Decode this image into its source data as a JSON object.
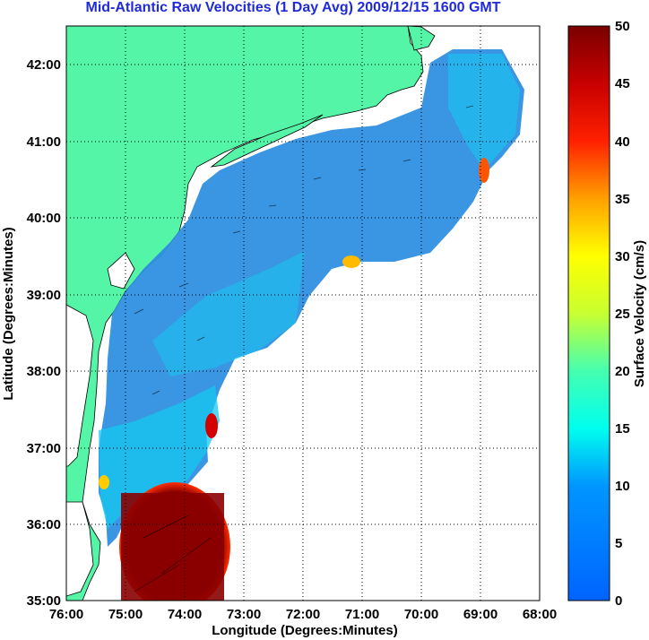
{
  "title": "Mid-Atlantic Raw Velocities (1 Day Avg) 2009/12/15 1600 GMT",
  "xlabel": "Longitude (Degrees:Minutes)",
  "ylabel": "Latitude (Degrees:Minutes)",
  "colorbar_label": "Surface Velocity (cm/s)",
  "x_ticks": [
    "76:00",
    "75:00",
    "74:00",
    "73:00",
    "72:00",
    "71:00",
    "70:00",
    "69:00",
    "68:00"
  ],
  "y_ticks": [
    "42:00",
    "41:00",
    "40:00",
    "39:00",
    "38:00",
    "37:00",
    "36:00",
    "35:00"
  ],
  "colorbar_ticks": [
    "50",
    "45",
    "40",
    "35",
    "30",
    "25",
    "20",
    "15",
    "10",
    "5",
    "0"
  ],
  "colors": {
    "land": "#55f5a8",
    "ocean_field": "#2f8fe0",
    "title": "#1f2ad8"
  },
  "chart_data": {
    "type": "heatmap",
    "title": "Mid-Atlantic Raw Velocities (1 Day Avg) 2009/12/15 1600 GMT",
    "xlabel": "Longitude (Degrees:Minutes)",
    "ylabel": "Latitude (Degrees:Minutes)",
    "xlim": [
      -76,
      -68
    ],
    "ylim": [
      35,
      42.5
    ],
    "colorbar": {
      "label": "Surface Velocity (cm/s)",
      "range": [
        0,
        50
      ],
      "colormap": "jet"
    },
    "grid": true,
    "features": [
      {
        "region": "shelf",
        "approx_speed_cm_s": 5
      },
      {
        "region": "south of 36:30 near 74:30W (Cape Hatteras)",
        "approx_speed_cm_s": 50
      },
      {
        "region": "near 73:30W 37:15N",
        "approx_speed_cm_s": 45
      },
      {
        "region": "near 69:00W 40:40N",
        "approx_speed_cm_s": 35
      },
      {
        "region": "near 71:15W 39:30N",
        "approx_speed_cm_s": 30
      }
    ]
  }
}
